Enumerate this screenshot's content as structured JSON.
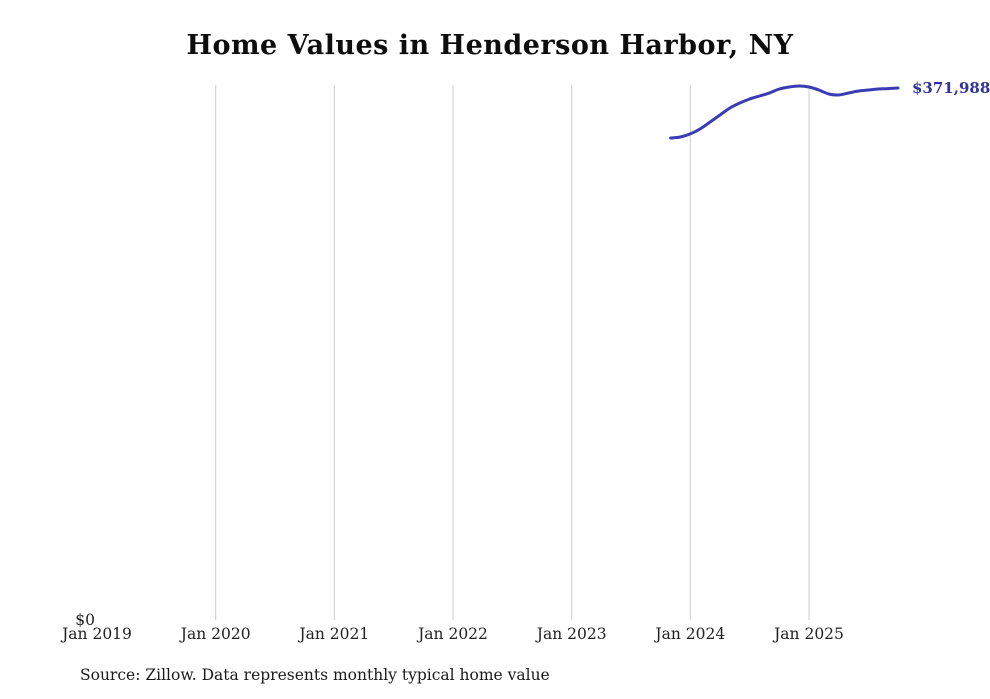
{
  "title": "Home Values in Henderson Harbor, NY",
  "axis": {
    "x_ticks": [
      "Jan 2019",
      "Jan 2020",
      "Jan 2021",
      "Jan 2022",
      "Jan 2023",
      "Jan 2024",
      "Jan 2025"
    ],
    "y_zero_label": "$0"
  },
  "end_label": "$371,988",
  "source": "Source: Zillow. Data represents monthly typical home value",
  "colors": {
    "line": "#3b3bb4",
    "end_label": "#32329b",
    "grid": "#cccccc",
    "text": "#222222"
  },
  "chart_data": {
    "type": "line",
    "title": "Home Values in Henderson Harbor, NY",
    "series_name": "Monthly typical home value",
    "x": [
      "2023-11",
      "2023-12",
      "2024-01",
      "2024-02",
      "2024-03",
      "2024-04",
      "2024-05",
      "2024-06",
      "2024-07",
      "2024-08",
      "2024-09",
      "2024-10",
      "2024-11",
      "2024-12",
      "2025-01",
      "2025-02",
      "2025-03",
      "2025-04",
      "2025-05",
      "2025-06",
      "2025-07",
      "2025-08",
      "2025-09",
      "2025-10"
    ],
    "values": [
      337000,
      337700,
      339900,
      343400,
      348200,
      353100,
      358000,
      361500,
      364300,
      366400,
      368500,
      371300,
      372700,
      373400,
      372700,
      370600,
      367800,
      367100,
      368500,
      369900,
      370600,
      371300,
      371600,
      371988
    ],
    "xlabel": "",
    "ylabel": "",
    "x_tick_labels": [
      "Jan 2019",
      "Jan 2020",
      "Jan 2021",
      "Jan 2022",
      "Jan 2023",
      "Jan 2024",
      "Jan 2025"
    ],
    "ylim": [
      0,
      375000
    ],
    "grid": "vertical-yearly",
    "legend": "none",
    "end_annotation": "$371,988"
  }
}
